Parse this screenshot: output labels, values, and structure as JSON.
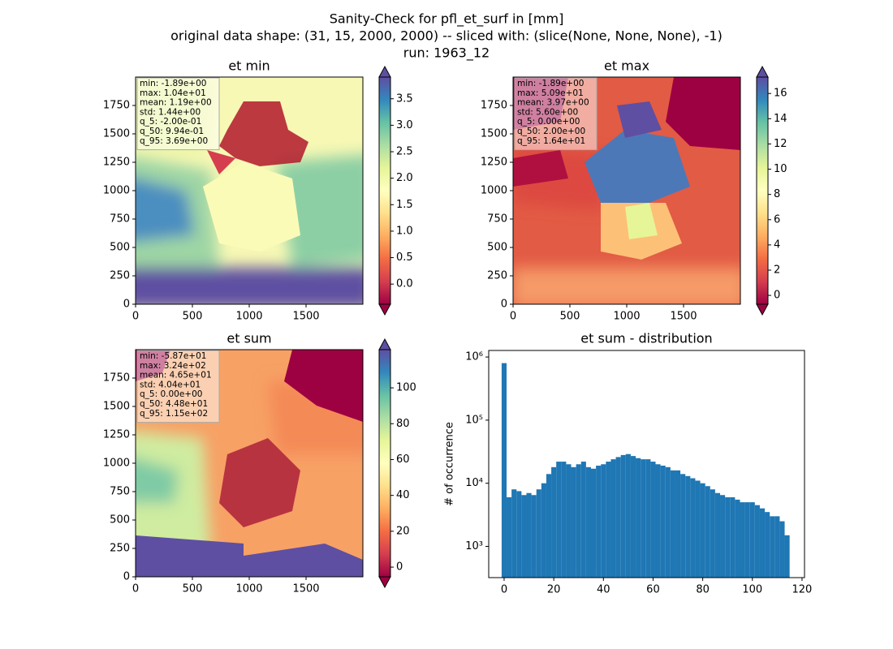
{
  "suptitle": [
    "Sanity-Check for pfl_et_surf in [mm]",
    "original data shape: (31, 15, 2000, 2000) -- sliced with: (slice(None, None, None), -1)",
    "run: 1963_12"
  ],
  "chart_data": [
    {
      "type": "heatmap",
      "title": "et min",
      "xlim": [
        0,
        2000
      ],
      "ylim": [
        0,
        2000
      ],
      "xticks": [
        0,
        500,
        1000,
        1500
      ],
      "yticks": [
        0,
        250,
        500,
        750,
        1000,
        1250,
        1500,
        1750
      ],
      "colormap": [
        "#9e0142",
        "#d53e4f",
        "#f46d43",
        "#fdae61",
        "#fee08b",
        "#ffffbf",
        "#e6f598",
        "#abdda4",
        "#66c2a5",
        "#3288bd",
        "#5e4fa2"
      ],
      "colorbar": {
        "lim": [
          -0.38,
          3.91
        ],
        "extend": "both",
        "ticks": [
          {
            "value": 0,
            "label": "0.0"
          },
          0.5,
          {
            "value": 1,
            "label": "1.0"
          },
          1.5,
          {
            "value": 2,
            "label": "2.0"
          },
          2.5,
          {
            "value": 3,
            "label": "3.0"
          },
          3.5
        ]
      },
      "stats": [
        "min: -1.89e+00",
        "max: 1.04e+01",
        "mean: 1.19e+00",
        "std: 1.44e+00",
        "q_5: -2.00e-01",
        "q_50: 9.94e-01",
        "q_95: 3.69e+00"
      ]
    },
    {
      "type": "heatmap",
      "title": "et max",
      "xlim": [
        0,
        2000
      ],
      "ylim": [
        0,
        2000
      ],
      "xticks": [
        0,
        500,
        1000,
        1500
      ],
      "yticks": [
        0,
        250,
        500,
        750,
        1000,
        1250,
        1500,
        1750
      ],
      "colormap": [
        "#9e0142",
        "#d53e4f",
        "#f46d43",
        "#fdae61",
        "#fee08b",
        "#ffffbf",
        "#e6f598",
        "#abdda4",
        "#66c2a5",
        "#3288bd",
        "#5e4fa2"
      ],
      "colorbar": {
        "lim": [
          -0.7,
          17.3
        ],
        "extend": "both",
        "ticks": [
          0,
          2,
          4,
          6,
          8,
          10,
          12,
          14,
          16
        ]
      },
      "stats": [
        "min: -1.89e+00",
        "max: 5.09e+01",
        "mean: 3.97e+00",
        "std: 5.60e+00",
        "q_5: 0.00e+00",
        "q_50: 2.00e+00",
        "q_95: 1.64e+01"
      ]
    },
    {
      "type": "heatmap",
      "title": "et sum",
      "xlim": [
        0,
        2000
      ],
      "ylim": [
        0,
        2000
      ],
      "xticks": [
        0,
        500,
        1000,
        1500
      ],
      "yticks": [
        0,
        250,
        500,
        750,
        1000,
        1250,
        1500,
        1750
      ],
      "colormap": [
        "#9e0142",
        "#d53e4f",
        "#f46d43",
        "#fdae61",
        "#fee08b",
        "#ffffbf",
        "#e6f598",
        "#abdda4",
        "#66c2a5",
        "#3288bd",
        "#5e4fa2"
      ],
      "colorbar": {
        "lim": [
          -5.4,
          121.3
        ],
        "extend": "both",
        "ticks": [
          0,
          20,
          40,
          60,
          80,
          100
        ]
      },
      "stats": [
        "min: -5.87e+01",
        "max: 3.24e+02",
        "mean: 4.65e+01",
        "std: 4.04e+01",
        "q_5: 0.00e+00",
        "q_50: 4.48e+01",
        "q_95: 1.15e+02"
      ]
    },
    {
      "type": "histogram",
      "title": "et sum - distribution",
      "ylabel": "# of occurrence",
      "color": "#1f77b4",
      "log_y": true,
      "xlim": [
        -6.2,
        121
      ],
      "xticks": [
        0,
        20,
        40,
        60,
        80,
        100,
        120
      ],
      "ylim": [
        320,
        1270000
      ],
      "yticks": [
        {
          "value": 1000,
          "label": "10³"
        },
        {
          "value": 10000,
          "label": "10⁴"
        },
        {
          "value": 100000,
          "label": "10⁵"
        },
        {
          "value": 1000000,
          "label": "10⁶"
        }
      ],
      "bins": [
        -1,
        1,
        3,
        5,
        7,
        9,
        11,
        13,
        15,
        17,
        19,
        21,
        23,
        25,
        27,
        29,
        31,
        33,
        35,
        37,
        39,
        41,
        43,
        45,
        47,
        49,
        51,
        53,
        55,
        57,
        59,
        61,
        63,
        65,
        67,
        69,
        71,
        73,
        75,
        77,
        79,
        81,
        83,
        85,
        87,
        89,
        91,
        93,
        95,
        97,
        99,
        101,
        103,
        105,
        107,
        109,
        111,
        113,
        115
      ],
      "values": [
        800000,
        6000,
        8000,
        7500,
        6500,
        7000,
        6500,
        8000,
        10000,
        14000,
        18000,
        22000,
        22000,
        20000,
        18000,
        20000,
        22000,
        18000,
        17000,
        19000,
        20000,
        22000,
        24000,
        26000,
        28000,
        29000,
        27000,
        25000,
        24000,
        24000,
        22000,
        20000,
        19000,
        18000,
        16000,
        16000,
        14000,
        13000,
        12000,
        11000,
        10000,
        9000,
        8000,
        7000,
        6500,
        6000,
        6000,
        5500,
        5000,
        5000,
        5000,
        4500,
        4000,
        3500,
        3000,
        3000,
        2500,
        1500
      ]
    }
  ]
}
